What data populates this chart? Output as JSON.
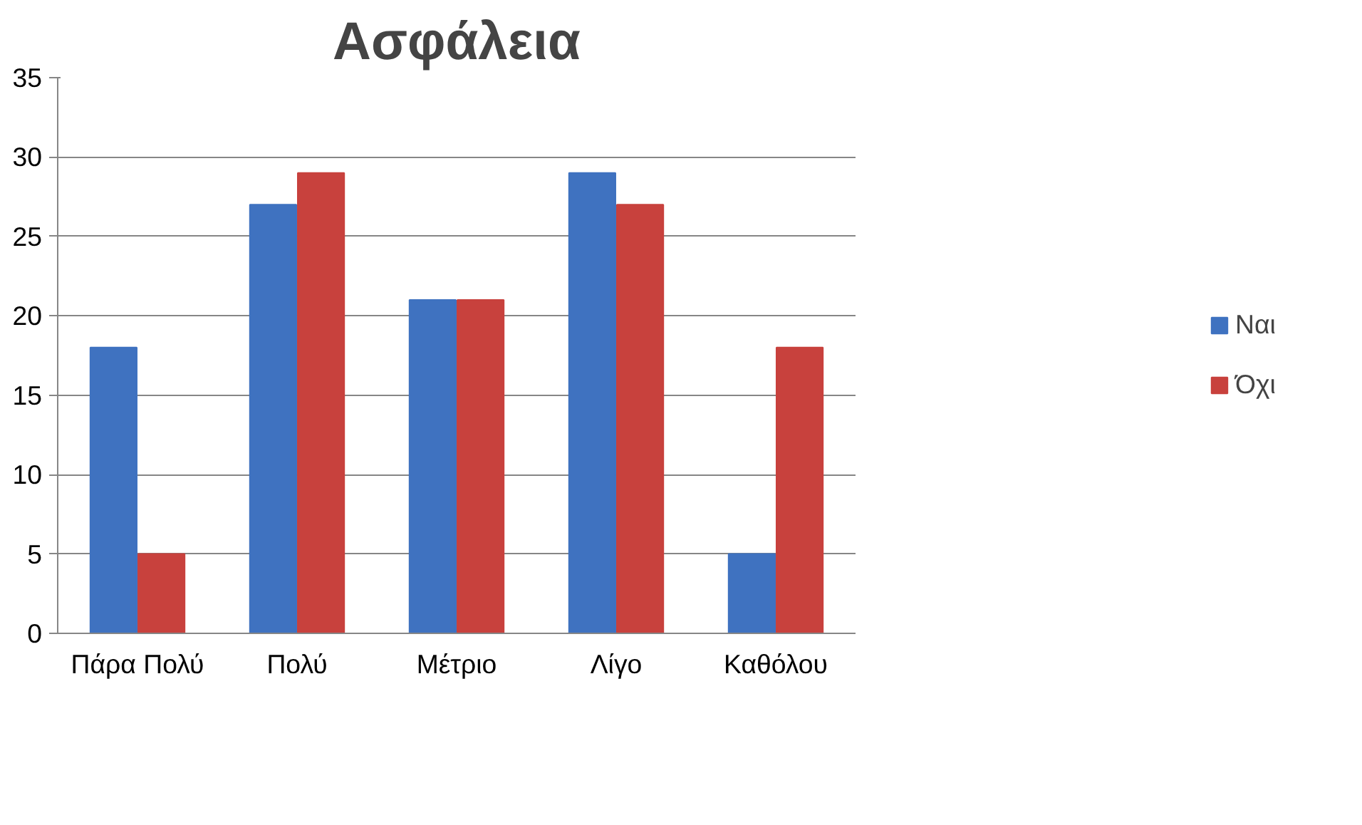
{
  "chart_data": {
    "type": "bar",
    "title": "Ασφάλεια",
    "categories": [
      "Πάρα Πολύ",
      "Πολύ",
      "Μέτριο",
      "Λίγο",
      "Καθόλου"
    ],
    "series": [
      {
        "name": "Ναι",
        "color": "#3f72c0",
        "values": [
          18,
          27,
          21,
          29,
          5
        ]
      },
      {
        "name": "Όχι",
        "color": "#c8413d",
        "values": [
          5,
          29,
          21,
          27,
          18
        ]
      }
    ],
    "ylim": [
      0,
      35
    ],
    "yticks": [
      0,
      5,
      10,
      15,
      20,
      25,
      30,
      35
    ],
    "grid": "y",
    "legend": "right"
  }
}
